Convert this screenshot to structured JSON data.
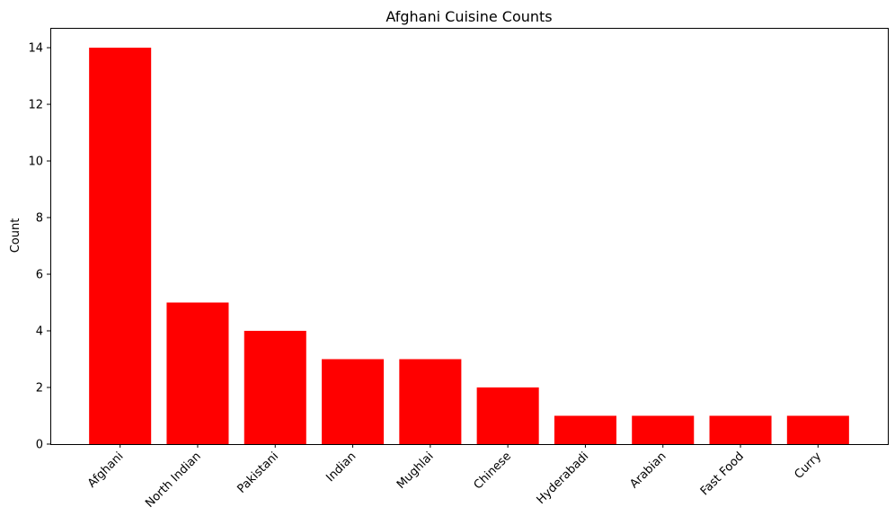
{
  "chart_data": {
    "type": "bar",
    "title": "Afghani Cuisine Counts",
    "xlabel": "",
    "ylabel": "Count",
    "categories": [
      "Afghani",
      "North Indian",
      "Pakistani",
      "Indian",
      "Mughlai",
      "Chinese",
      "Hyderabadi",
      "Arabian",
      "Fast Food",
      "Curry"
    ],
    "values": [
      14,
      5,
      4,
      3,
      3,
      2,
      1,
      1,
      1,
      1
    ],
    "ylim": [
      0,
      14.7
    ],
    "yticks": [
      0,
      2,
      4,
      6,
      8,
      10,
      12,
      14
    ],
    "bar_color": "#ff0000",
    "grid": false,
    "legend": "none"
  }
}
